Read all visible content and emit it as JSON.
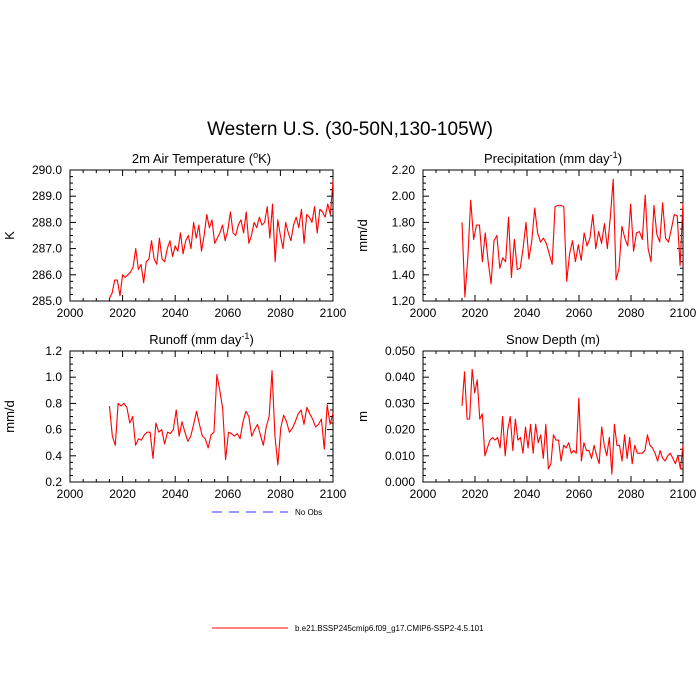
{
  "figure": {
    "title": "Western U.S. (30-50N,130-105W)"
  },
  "legend": {
    "entries": [
      {
        "label": "No Obs",
        "color": "#3333ff",
        "style": "dashed"
      },
      {
        "label": "b.e21.BSSP245cmip6.f09_g17.CMIP6-SSP2-4.5.101",
        "color": "#ff0000",
        "style": "solid"
      }
    ]
  },
  "colors": {
    "series": "#ff0000",
    "axis": "#000000",
    "obs": "#3333ff"
  },
  "chart_data": [
    {
      "type": "line",
      "title_main": "2m Air Temperature (",
      "title_sup": "o",
      "title_end": "K)",
      "ylabel": "K",
      "xlim": [
        2000,
        2100
      ],
      "ylim": [
        285,
        290
      ],
      "xticks": [
        2000,
        2020,
        2040,
        2060,
        2080,
        2100
      ],
      "xtick_labels": [
        "2000",
        "2020",
        "2040",
        "2060",
        "2080",
        "2100"
      ],
      "yticks": [
        285,
        286,
        287,
        288,
        289,
        290
      ],
      "ytick_labels": [
        "285.0",
        "286.0",
        "287.0",
        "288.0",
        "289.0",
        "290.0"
      ],
      "x_start": 2015,
      "values": [
        285.1,
        285.3,
        285.8,
        285.8,
        285.2,
        286.0,
        285.9,
        286.0,
        286.1,
        286.3,
        287.0,
        286.2,
        286.4,
        285.7,
        286.5,
        286.6,
        287.3,
        286.6,
        286.4,
        287.4,
        286.6,
        286.5,
        287.0,
        287.3,
        286.7,
        287.1,
        286.9,
        287.6,
        286.8,
        287.3,
        287.5,
        287.0,
        288.0,
        287.4,
        287.9,
        286.9,
        287.5,
        288.3,
        287.8,
        288.1,
        287.2,
        287.4,
        287.6,
        287.9,
        287.3,
        287.7,
        288.4,
        287.6,
        287.5,
        287.9,
        288.1,
        287.6,
        288.4,
        287.2,
        287.5,
        288.0,
        287.8,
        288.2,
        287.9,
        288.0,
        288.6,
        287.4,
        288.7,
        286.5,
        288.1,
        287.5,
        287.0,
        288.0,
        287.6,
        287.3,
        287.9,
        288.2,
        287.8,
        288.5,
        287.2,
        288.3,
        288.2,
        288.0,
        288.6,
        287.6,
        288.5,
        288.4,
        288.2,
        288.7,
        288.3,
        289.6
      ]
    },
    {
      "type": "line",
      "title_main": "Precipitation (mm day",
      "title_sup": "-1",
      "title_end": ")",
      "ylabel": "mm/d",
      "xlim": [
        2000,
        2100
      ],
      "ylim": [
        1.2,
        2.2
      ],
      "xticks": [
        2000,
        2020,
        2040,
        2060,
        2080,
        2100
      ],
      "xtick_labels": [
        "2000",
        "2020",
        "2040",
        "2060",
        "2080",
        "2100"
      ],
      "yticks": [
        1.2,
        1.4,
        1.6,
        1.8,
        2.0,
        2.2
      ],
      "ytick_labels": [
        "1.20",
        "1.40",
        "1.60",
        "1.80",
        "2.00",
        "2.20"
      ],
      "x_start": 2015,
      "values": [
        1.8,
        1.23,
        1.53,
        1.97,
        1.67,
        1.78,
        1.78,
        1.5,
        1.72,
        1.5,
        1.33,
        1.66,
        1.7,
        1.45,
        1.53,
        1.5,
        1.84,
        1.38,
        1.67,
        1.44,
        1.45,
        1.6,
        1.8,
        1.52,
        1.66,
        1.91,
        1.72,
        1.65,
        1.68,
        1.64,
        1.56,
        1.48,
        1.92,
        1.93,
        1.93,
        1.92,
        1.35,
        1.56,
        1.66,
        1.5,
        1.63,
        1.51,
        1.72,
        1.62,
        1.68,
        1.86,
        1.6,
        1.73,
        1.64,
        1.79,
        1.6,
        1.84,
        2.13,
        1.36,
        1.45,
        1.77,
        1.68,
        1.62,
        1.94,
        1.58,
        1.72,
        1.73,
        1.67,
        2.01,
        1.6,
        1.5,
        1.93,
        1.71,
        1.65,
        1.95,
        1.68,
        1.65,
        1.75,
        1.86,
        1.85,
        1.47,
        1.95
      ]
    },
    {
      "type": "line",
      "title_main": "Runoff (mm day",
      "title_sup": "-1",
      "title_end": ")",
      "ylabel": "mm/d",
      "xlim": [
        2000,
        2100
      ],
      "ylim": [
        0.2,
        1.2
      ],
      "xticks": [
        2000,
        2020,
        2040,
        2060,
        2080,
        2100
      ],
      "xtick_labels": [
        "2000",
        "2020",
        "2040",
        "2060",
        "2080",
        "2100"
      ],
      "yticks": [
        0.2,
        0.4,
        0.6,
        0.8,
        1.0,
        1.2
      ],
      "ytick_labels": [
        "0.2",
        "0.4",
        "0.6",
        "0.8",
        "1.0",
        "1.2"
      ],
      "x_start": 2015,
      "values": [
        0.78,
        0.55,
        0.48,
        0.8,
        0.78,
        0.8,
        0.77,
        0.65,
        0.7,
        0.48,
        0.53,
        0.52,
        0.56,
        0.58,
        0.58,
        0.38,
        0.65,
        0.58,
        0.6,
        0.49,
        0.58,
        0.57,
        0.6,
        0.75,
        0.55,
        0.66,
        0.58,
        0.51,
        0.55,
        0.64,
        0.74,
        0.64,
        0.55,
        0.53,
        0.46,
        0.56,
        0.58,
        1.02,
        0.9,
        0.76,
        0.37,
        0.58,
        0.57,
        0.55,
        0.57,
        0.53,
        0.66,
        0.74,
        0.7,
        0.55,
        0.6,
        0.64,
        0.56,
        0.48,
        0.62,
        0.7,
        1.05,
        0.55,
        0.33,
        0.61,
        0.71,
        0.66,
        0.58,
        0.61,
        0.66,
        0.72,
        0.75,
        0.64,
        0.77,
        0.72,
        0.68,
        0.62,
        0.64,
        0.68,
        0.45,
        0.79,
        0.64,
        0.73
      ]
    },
    {
      "type": "line",
      "title_main": "Snow Depth (m)",
      "title_sup": "",
      "title_end": "",
      "ylabel": "m",
      "xlim": [
        2000,
        2100
      ],
      "ylim": [
        0.0,
        0.05
      ],
      "xticks": [
        2000,
        2020,
        2040,
        2060,
        2080,
        2100
      ],
      "xtick_labels": [
        "2000",
        "2020",
        "2040",
        "2060",
        "2080",
        "2100"
      ],
      "yticks": [
        0.0,
        0.01,
        0.02,
        0.03,
        0.04,
        0.05
      ],
      "ytick_labels": [
        "0.000",
        "0.010",
        "0.020",
        "0.030",
        "0.040",
        "0.050"
      ],
      "x_start": 2015,
      "values": [
        0.029,
        0.042,
        0.024,
        0.024,
        0.043,
        0.034,
        0.039,
        0.024,
        0.026,
        0.01,
        0.013,
        0.016,
        0.017,
        0.016,
        0.017,
        0.013,
        0.025,
        0.01,
        0.02,
        0.025,
        0.012,
        0.024,
        0.016,
        0.017,
        0.011,
        0.021,
        0.013,
        0.022,
        0.011,
        0.022,
        0.015,
        0.018,
        0.009,
        0.022,
        0.005,
        0.007,
        0.018,
        0.016,
        0.016,
        0.008,
        0.014,
        0.013,
        0.015,
        0.011,
        0.012,
        0.011,
        0.032,
        0.008,
        0.015,
        0.012,
        0.012,
        0.009,
        0.014,
        0.01,
        0.007,
        0.021,
        0.014,
        0.01,
        0.017,
        0.003,
        0.022,
        0.014,
        0.014,
        0.008,
        0.018,
        0.009,
        0.017,
        0.007,
        0.014,
        0.011,
        0.011,
        0.011,
        0.012,
        0.018,
        0.014,
        0.013,
        0.011,
        0.008,
        0.012,
        0.009,
        0.008,
        0.01,
        0.011,
        0.009,
        0.007,
        0.01,
        0.005,
        0.014
      ]
    }
  ]
}
